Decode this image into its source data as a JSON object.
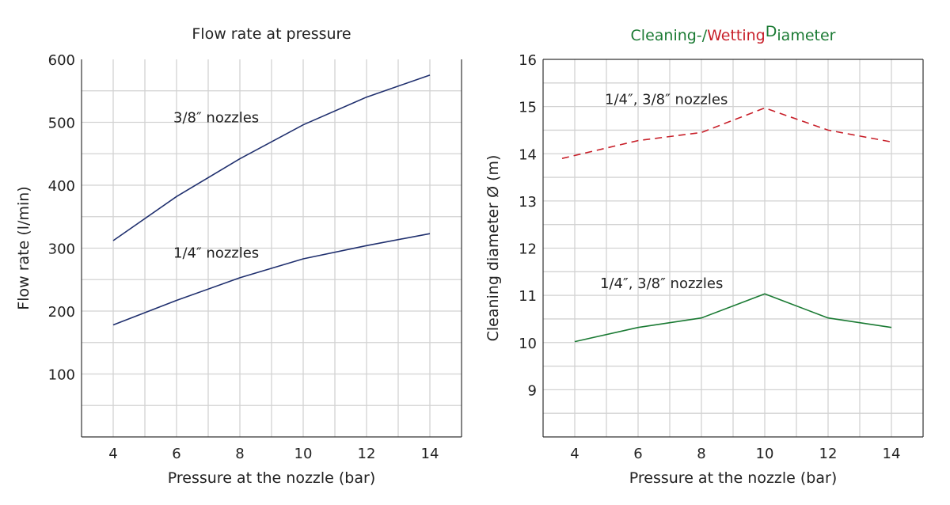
{
  "colors": {
    "navy": "#1f2f6e",
    "green": "#1a7a33",
    "red": "#c8202a"
  },
  "chart_data": [
    {
      "type": "line",
      "title": "Flow rate at pressure",
      "xlabel": "Pressure at the nozzle (bar)",
      "ylabel": "Flow rate (l/min)",
      "xlim": [
        3,
        15
      ],
      "ylim": [
        0,
        600
      ],
      "xticks": [
        4,
        6,
        8,
        10,
        12,
        14
      ],
      "yticks": [
        100,
        200,
        300,
        400,
        500,
        600
      ],
      "grid": true,
      "series": [
        {
          "name": "3/8″ nozzles",
          "color": "#1f2f6e",
          "dash": false,
          "x": [
            4,
            6,
            8,
            10,
            12,
            14
          ],
          "y": [
            312,
            382,
            442,
            496,
            540,
            575
          ]
        },
        {
          "name": "1/4″ nozzles",
          "color": "#1f2f6e",
          "dash": false,
          "x": [
            4,
            6,
            8,
            10,
            12,
            14
          ],
          "y": [
            178,
            217,
            253,
            283,
            304,
            323
          ]
        }
      ],
      "annotations": [
        {
          "text": "3/8″ nozzles",
          "x": 5.9,
          "y": 500
        },
        {
          "text": "1/4″ nozzles",
          "x": 5.9,
          "y": 285
        }
      ]
    },
    {
      "type": "line",
      "title_parts": [
        {
          "text": "Cleaning-/",
          "color": "#1a7a33"
        },
        {
          "text": "Wetting",
          "color": "#c8202a"
        },
        {
          "text": "D",
          "color": "#1a7a33",
          "raised": true
        },
        {
          "text": "iameter",
          "color": "#1a7a33"
        }
      ],
      "xlabel": "Pressure at the nozzle (bar)",
      "ylabel": "Cleaning diameter Ø (m)",
      "xlim": [
        3,
        15
      ],
      "ylim": [
        8,
        16
      ],
      "xticks": [
        4,
        6,
        8,
        10,
        12,
        14
      ],
      "yticks": [
        9,
        10,
        11,
        12,
        13,
        14,
        15,
        16
      ],
      "grid": true,
      "series": [
        {
          "name": "1/4″, 3/8″ nozzles",
          "color": "#c8202a",
          "dash": true,
          "x": [
            3.6,
            6,
            8,
            10,
            12,
            14
          ],
          "y": [
            13.9,
            14.28,
            14.45,
            14.97,
            14.5,
            14.25
          ]
        },
        {
          "name": "1/4″, 3/8″ nozzles",
          "color": "#1a7a33",
          "dash": false,
          "x": [
            4,
            6,
            8,
            10,
            12,
            14
          ],
          "y": [
            10.02,
            10.32,
            10.52,
            11.03,
            10.52,
            10.32
          ]
        }
      ],
      "annotations": [
        {
          "text": "1/4″, 3/8″ nozzles",
          "x": 4.95,
          "y": 15.05
        },
        {
          "text": "1/4″, 3/8″ nozzles",
          "x": 4.8,
          "y": 11.15
        }
      ]
    }
  ]
}
